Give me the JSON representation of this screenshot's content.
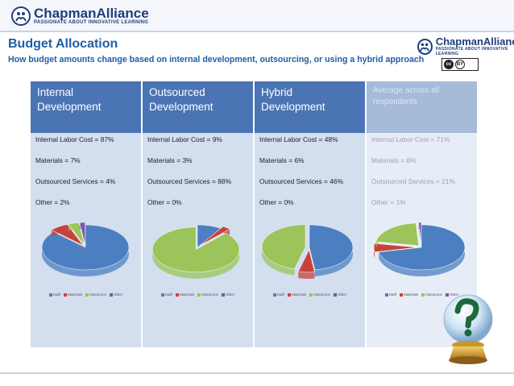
{
  "header": {
    "brand_name": "ChapmanAlliance",
    "brand_tagline": "PASSIONATE ABOUT INNOVATIVE LEARNING",
    "cc_label": "cc",
    "by_label": "BY"
  },
  "slide": {
    "title": "Budget Allocation",
    "subtitle": "How budget amounts change based on internal development, outsourcing, or using a hybrid approach"
  },
  "colors": {
    "header_blue": "#4a74b4",
    "body_blue": "#d3deef",
    "avg_head": "#a6bad9",
    "avg_body": "#e7edf6",
    "staff": "#4c7fc1",
    "materials": "#c8423c",
    "outsource": "#9bc45a",
    "other": "#7559a4"
  },
  "chart_data": [
    {
      "type": "pie",
      "column": "Internal Development",
      "lines": [
        "Internal Labor Cost = 87%",
        "Materials  = 7%",
        "Outsourced Services = 4%",
        "Other = 2%"
      ],
      "categories": [
        "Staff",
        "Materials",
        "Outsource",
        "Other"
      ],
      "values": [
        87,
        7,
        4,
        2
      ],
      "legend_position": "bottom"
    },
    {
      "type": "pie",
      "column": "Outsourced Development",
      "lines": [
        "Internal Labor Cost = 9%",
        "Materials  = 3%",
        "Outsourced Services = 88%",
        "Other = 0%"
      ],
      "categories": [
        "Staff",
        "Materials",
        "Outsource",
        "Other"
      ],
      "values": [
        9,
        3,
        88,
        0
      ],
      "legend_position": "bottom"
    },
    {
      "type": "pie",
      "column": "Hybrid Development",
      "lines": [
        "Internal Labor Cost = 48%",
        "Materials  = 6%",
        "Outsourced Services = 46%",
        "Other = 0%"
      ],
      "categories": [
        "Staff",
        "Materials",
        "Outsource",
        "Other"
      ],
      "values": [
        48,
        6,
        46,
        0
      ],
      "legend_position": "bottom"
    },
    {
      "type": "pie",
      "column": "Average across all respondents",
      "lines": [
        "Internal Labor Cost = 71%",
        "Materials  = 6%",
        "Outsourced Services = 21%",
        "Other = 1%"
      ],
      "categories": [
        "Staff",
        "Materials",
        "Outsource",
        "Other"
      ],
      "values": [
        71,
        6,
        21,
        1
      ],
      "legend_position": "bottom"
    }
  ]
}
